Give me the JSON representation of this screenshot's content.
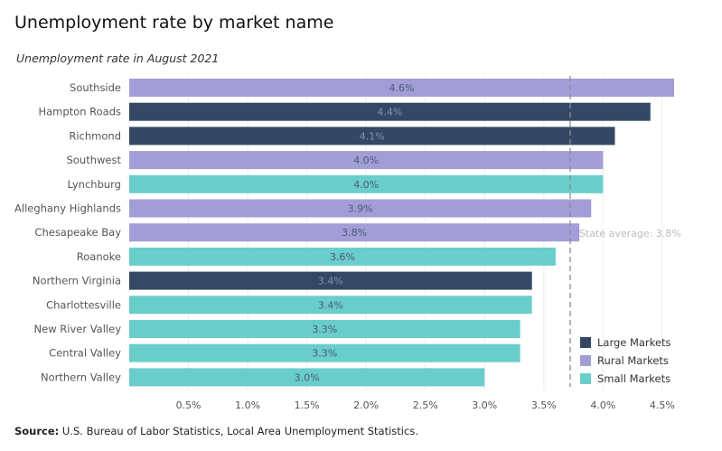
{
  "chart_data": {
    "type": "bar",
    "orientation": "horizontal",
    "title": "Unemployment rate by market name",
    "subtitle": "Unemployment rate in August 2021",
    "categories": [
      "Southside",
      "Hampton Roads",
      "Richmond",
      "Southwest",
      "Lynchburg",
      "Alleghany Highlands",
      "Chesapeake Bay",
      "Roanoke",
      "Northern Virginia",
      "Charlottesville",
      "New River Valley",
      "Central Valley",
      "Northern Valley"
    ],
    "values": [
      4.6,
      4.4,
      4.1,
      4.0,
      4.0,
      3.9,
      3.8,
      3.6,
      3.4,
      3.4,
      3.3,
      3.3,
      3.0
    ],
    "value_labels": [
      "4.6%",
      "4.4%",
      "4.1%",
      "4.0%",
      "4.0%",
      "3.9%",
      "3.8%",
      "3.6%",
      "3.4%",
      "3.4%",
      "3.3%",
      "3.3%",
      "3.0%"
    ],
    "groups": [
      "Rural Markets",
      "Large Markets",
      "Large Markets",
      "Rural Markets",
      "Small Markets",
      "Rural Markets",
      "Rural Markets",
      "Small Markets",
      "Large Markets",
      "Small Markets",
      "Small Markets",
      "Small Markets",
      "Small Markets"
    ],
    "legend": [
      {
        "name": "Large Markets",
        "color": "#344866"
      },
      {
        "name": "Rural Markets",
        "color": "#a29dd6"
      },
      {
        "name": "Small Markets",
        "color": "#69cdcb"
      }
    ],
    "legend_position": "bottom-right",
    "x_ticks": [
      0.5,
      1.0,
      1.5,
      2.0,
      2.5,
      3.0,
      3.5,
      4.0,
      4.5
    ],
    "x_tick_labels": [
      "0.5%",
      "1.0%",
      "1.5%",
      "2.0%",
      "2.5%",
      "3.0%",
      "3.5%",
      "4.0%",
      "4.5%"
    ],
    "xlim": [
      0,
      4.6
    ],
    "grid": true,
    "reference_line": {
      "value": 3.8,
      "label": "State average: 3.8%"
    }
  },
  "source": {
    "prefix": "Source:",
    "text": " U.S. Bureau of Labor Statistics, Local Area Unemployment Statistics."
  }
}
